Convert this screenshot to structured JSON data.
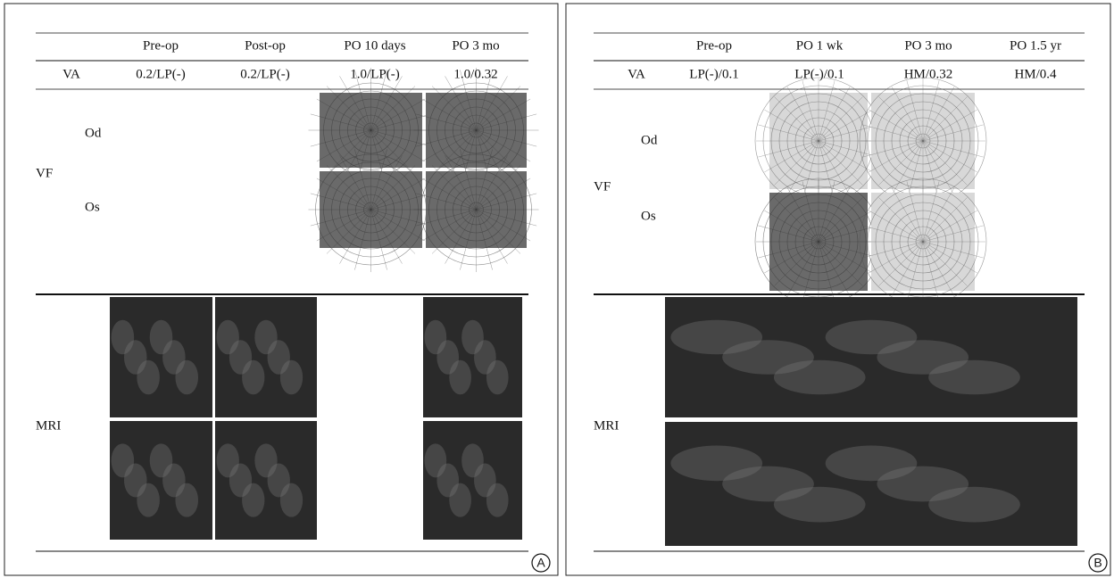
{
  "panels": [
    {
      "label": "A",
      "columns": [
        "Pre-op",
        "Post-op",
        "PO 10 days",
        "PO 3 mo"
      ],
      "va": {
        "label": "VA",
        "values": [
          "0.2/LP(-)",
          "0.2/LP(-)",
          "1.0/LP(-)",
          "1.0/0.32"
        ]
      },
      "vf": {
        "label": "VF",
        "sublabels": [
          "Od",
          "Os"
        ]
      },
      "mri": {
        "label": "MRI"
      }
    },
    {
      "label": "B",
      "columns": [
        "Pre-op",
        "PO 1 wk",
        "PO 3 mo",
        "PO 1.5 yr"
      ],
      "va": {
        "label": "VA",
        "values": [
          "LP(-)/0.1",
          "LP(-)/0.1",
          "HM/0.32",
          "HM/0.4"
        ]
      },
      "vf": {
        "label": "VF",
        "sublabels": [
          "Od",
          "Os"
        ]
      },
      "mri": {
        "label": "MRI"
      }
    }
  ]
}
